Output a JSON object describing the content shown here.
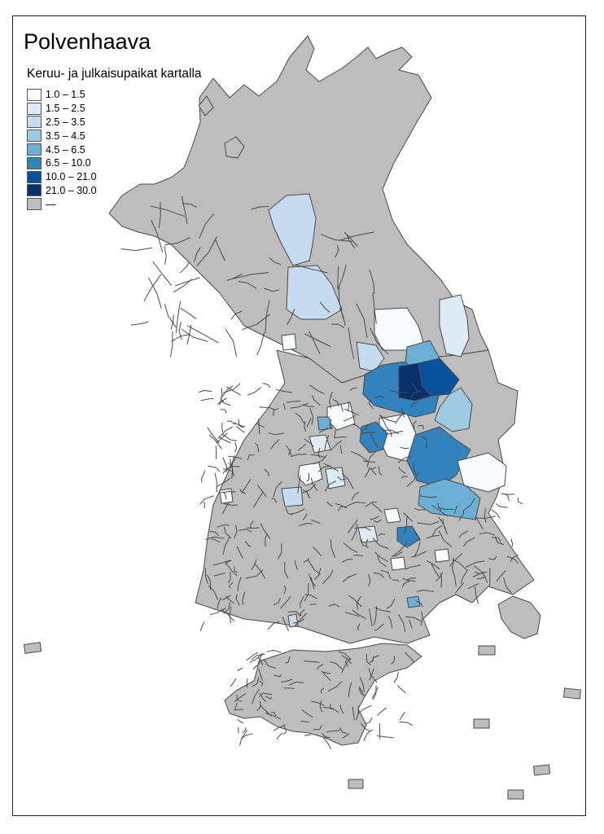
{
  "title": "Polvenhaava",
  "legend": {
    "title": "Keruu- ja julkaisupaikat kartalla",
    "items": [
      {
        "label": "1.0 – 1.5",
        "color": "#f7fbff"
      },
      {
        "label": "1.5 – 2.5",
        "color": "#deebf7"
      },
      {
        "label": "2.5 – 3.5",
        "color": "#c6dbef"
      },
      {
        "label": "3.5 – 4.5",
        "color": "#9ecae1"
      },
      {
        "label": "4.5 – 6.5",
        "color": "#6baed6"
      },
      {
        "label": "6.5 – 10.0",
        "color": "#3182bd"
      },
      {
        "label": "10.0 – 21.0",
        "color": "#08519c"
      },
      {
        "label": "21.0 – 30.0",
        "color": "#08306b"
      },
      {
        "label": "—",
        "color": "#bdbdbd"
      }
    ]
  },
  "colors": {
    "no_data": "#bdbdbd",
    "border": "#4a4a4a"
  }
}
